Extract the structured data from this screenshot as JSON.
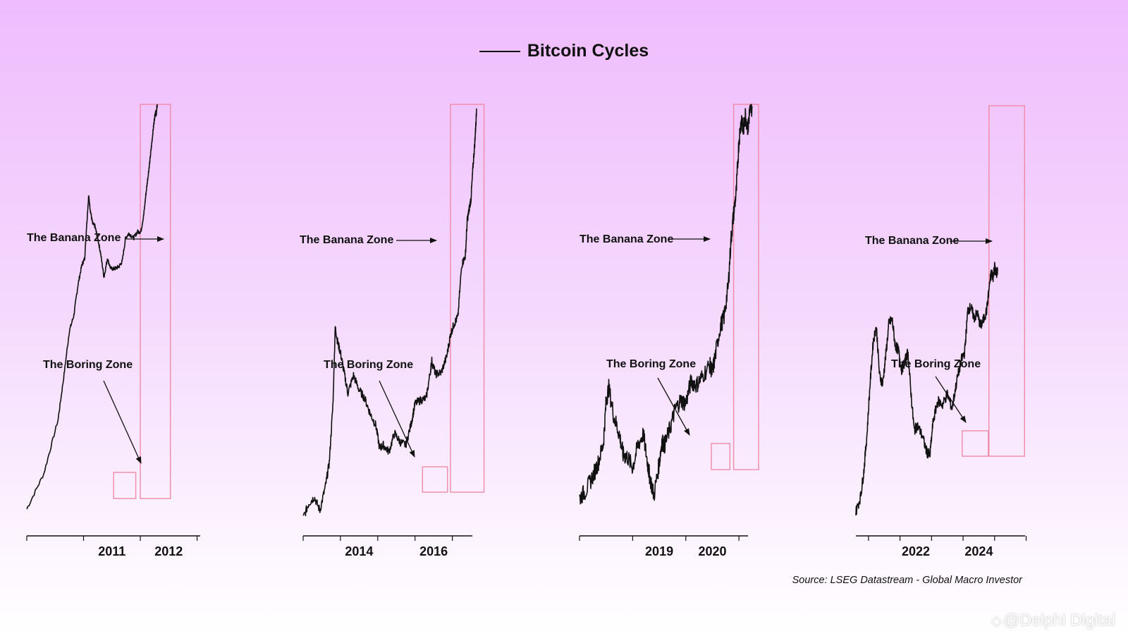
{
  "legend": {
    "label": "Bitcoin Cycles",
    "color": "#111111"
  },
  "source": "Source: LSEG Datastream - Global Macro Investor",
  "watermark": {
    "text": "@Delphi Digital",
    "icon": "diamond-logo-icon"
  },
  "colors": {
    "line": "#111111",
    "zone_box": "#f08aa8"
  },
  "chart_data": [
    {
      "type": "line",
      "series": [
        {
          "name": "Bitcoin Cycles"
        }
      ],
      "xlim": [
        2010.0,
        2013.13
      ],
      "x_ticks": [
        2011,
        2012
      ],
      "tick_labels": [
        "2011",
        "2012"
      ],
      "annotations": {
        "banana": "The Banana Zone",
        "boring": "The Boring Zone"
      },
      "boring_zone": [
        2011.53,
        2011.92
      ],
      "banana_zone": [
        2012.0,
        2012.53
      ],
      "x": [
        2010.0,
        2010.3,
        2010.55,
        2010.65,
        2010.75,
        2010.83,
        2010.9,
        2010.97,
        2011.02,
        2011.05,
        2011.09,
        2011.12,
        2011.16,
        2011.2,
        2011.25,
        2011.3,
        2011.36,
        2011.42,
        2011.48,
        2011.55,
        2011.62,
        2011.68,
        2011.74,
        2011.8,
        2011.88,
        2011.95,
        2012.01,
        2012.06,
        2012.1,
        2012.14,
        2012.17,
        2012.2,
        2012.23,
        2012.25,
        2012.27,
        2012.28,
        2012.29,
        2012.3
      ],
      "values": [
        0.02,
        0.05,
        0.2,
        0.6,
        2,
        3,
        6.5,
        11,
        13,
        28,
        66,
        45,
        32,
        30,
        22,
        15,
        8,
        13,
        10,
        10,
        10.5,
        12,
        22,
        25,
        22,
        26,
        26,
        40,
        70,
        115,
        165,
        250,
        380,
        490,
        590,
        520,
        640,
        680
      ]
    },
    {
      "type": "line",
      "series": [
        {
          "name": "Bitcoin Cycles"
        }
      ],
      "xlim": [
        2013.0,
        2017.65
      ],
      "x_ticks": [
        2014,
        2016
      ],
      "tick_labels": [
        "2014",
        "2016"
      ],
      "annotations": {
        "banana": "The Banana Zone",
        "boring": "The Boring Zone"
      },
      "boring_zone": [
        2016.2,
        2016.87
      ],
      "banana_zone": [
        2016.95,
        2017.85
      ],
      "x": [
        2013.0,
        2013.15,
        2013.3,
        2013.45,
        2013.6,
        2013.7,
        2013.8,
        2013.86,
        2013.93,
        2014.0,
        2014.1,
        2014.2,
        2014.35,
        2014.5,
        2014.65,
        2014.8,
        2014.95,
        2015.05,
        2015.15,
        2015.3,
        2015.45,
        2015.6,
        2015.75,
        2015.9,
        2016.0,
        2016.15,
        2016.3,
        2016.42,
        2016.45,
        2016.55,
        2016.7,
        2016.85,
        2016.95,
        2017.05,
        2017.15,
        2017.25,
        2017.35,
        2017.4,
        2017.45,
        2017.5,
        2017.55,
        2017.6,
        2017.63,
        2017.65
      ],
      "values": [
        100,
        120,
        130,
        110,
        150,
        200,
        420,
        1100,
        900,
        800,
        620,
        480,
        600,
        500,
        450,
        370,
        320,
        240,
        250,
        230,
        290,
        260,
        250,
        330,
        420,
        440,
        450,
        650,
        720,
        610,
        620,
        760,
        1000,
        1150,
        1250,
        2400,
        2700,
        4200,
        4800,
        5500,
        8000,
        11000,
        14000,
        17000
      ]
    },
    {
      "type": "line",
      "series": [
        {
          "name": "Bitcoin Cycles"
        }
      ],
      "xlim": [
        2018.0,
        2021.25
      ],
      "x_ticks": [
        2019,
        2020
      ],
      "tick_labels": [
        "2019",
        "2020"
      ],
      "annotations": {
        "banana": "The Banana Zone",
        "boring": "The Boring Zone"
      },
      "boring_zone": [
        2020.48,
        2020.83
      ],
      "banana_zone": [
        2020.9,
        2021.37
      ],
      "x": [
        2018.0,
        2018.12,
        2018.25,
        2018.35,
        2018.45,
        2018.5,
        2018.55,
        2018.65,
        2018.75,
        2018.82,
        2018.9,
        2019.0,
        2019.1,
        2019.2,
        2019.28,
        2019.32,
        2019.4,
        2019.5,
        2019.55,
        2019.6,
        2019.7,
        2019.8,
        2019.9,
        2020.0,
        2020.1,
        2020.2,
        2020.3,
        2020.45,
        2020.5,
        2020.55,
        2020.65,
        2020.72,
        2020.8,
        2020.85,
        2020.9,
        2020.95,
        2021.0,
        2021.05,
        2021.08,
        2021.12,
        2021.17,
        2021.2,
        2021.25
      ],
      "values": [
        6500,
        6800,
        7400,
        8000,
        9000,
        11500,
        12500,
        10500,
        9500,
        8400,
        8300,
        7800,
        8900,
        9500,
        8000,
        7400,
        6600,
        8000,
        9100,
        8900,
        9800,
        11000,
        11600,
        11400,
        13000,
        12700,
        13300,
        14300,
        13700,
        15000,
        18000,
        19000,
        23000,
        30000,
        35000,
        40000,
        54000,
        62000,
        57000,
        63000,
        58000,
        64000,
        66000
      ]
    },
    {
      "type": "line",
      "series": [
        {
          "name": "Bitcoin Cycles"
        }
      ],
      "xlim": [
        2020.6,
        2026.1
      ],
      "x_ticks": [
        2022,
        2024
      ],
      "tick_labels": [
        "2022",
        "2024"
      ],
      "annotations": {
        "banana": "The Banana Zone",
        "boring": "The Boring Zone"
      },
      "boring_zone": [
        2023.97,
        2024.8
      ],
      "banana_zone": [
        2024.82,
        2025.95
      ],
      "x": [
        2020.6,
        2020.75,
        2020.85,
        2020.95,
        2021.05,
        2021.15,
        2021.25,
        2021.35,
        2021.45,
        2021.55,
        2021.65,
        2021.75,
        2021.85,
        2021.95,
        2022.05,
        2022.15,
        2022.25,
        2022.35,
        2022.45,
        2022.55,
        2022.7,
        2022.85,
        2022.95,
        2023.05,
        2023.2,
        2023.35,
        2023.5,
        2023.65,
        2023.8,
        2023.95,
        2024.05,
        2024.15,
        2024.25,
        2024.35,
        2024.45,
        2024.55,
        2024.65,
        2024.75,
        2024.85,
        2024.9,
        2024.95,
        2025.0,
        2025.05,
        2025.1
      ],
      "values": [
        9500,
        11000,
        14000,
        20000,
        33000,
        50000,
        58000,
        36000,
        33000,
        44000,
        60000,
        62000,
        48000,
        46000,
        38000,
        41000,
        45000,
        30000,
        21000,
        22000,
        20000,
        17000,
        16500,
        23000,
        28000,
        27000,
        30000,
        26000,
        34000,
        42000,
        45000,
        68000,
        70000,
        63000,
        66000,
        58000,
        62000,
        68000,
        90000,
        98000,
        94000,
        104000,
        96000,
        102000
      ]
    }
  ]
}
